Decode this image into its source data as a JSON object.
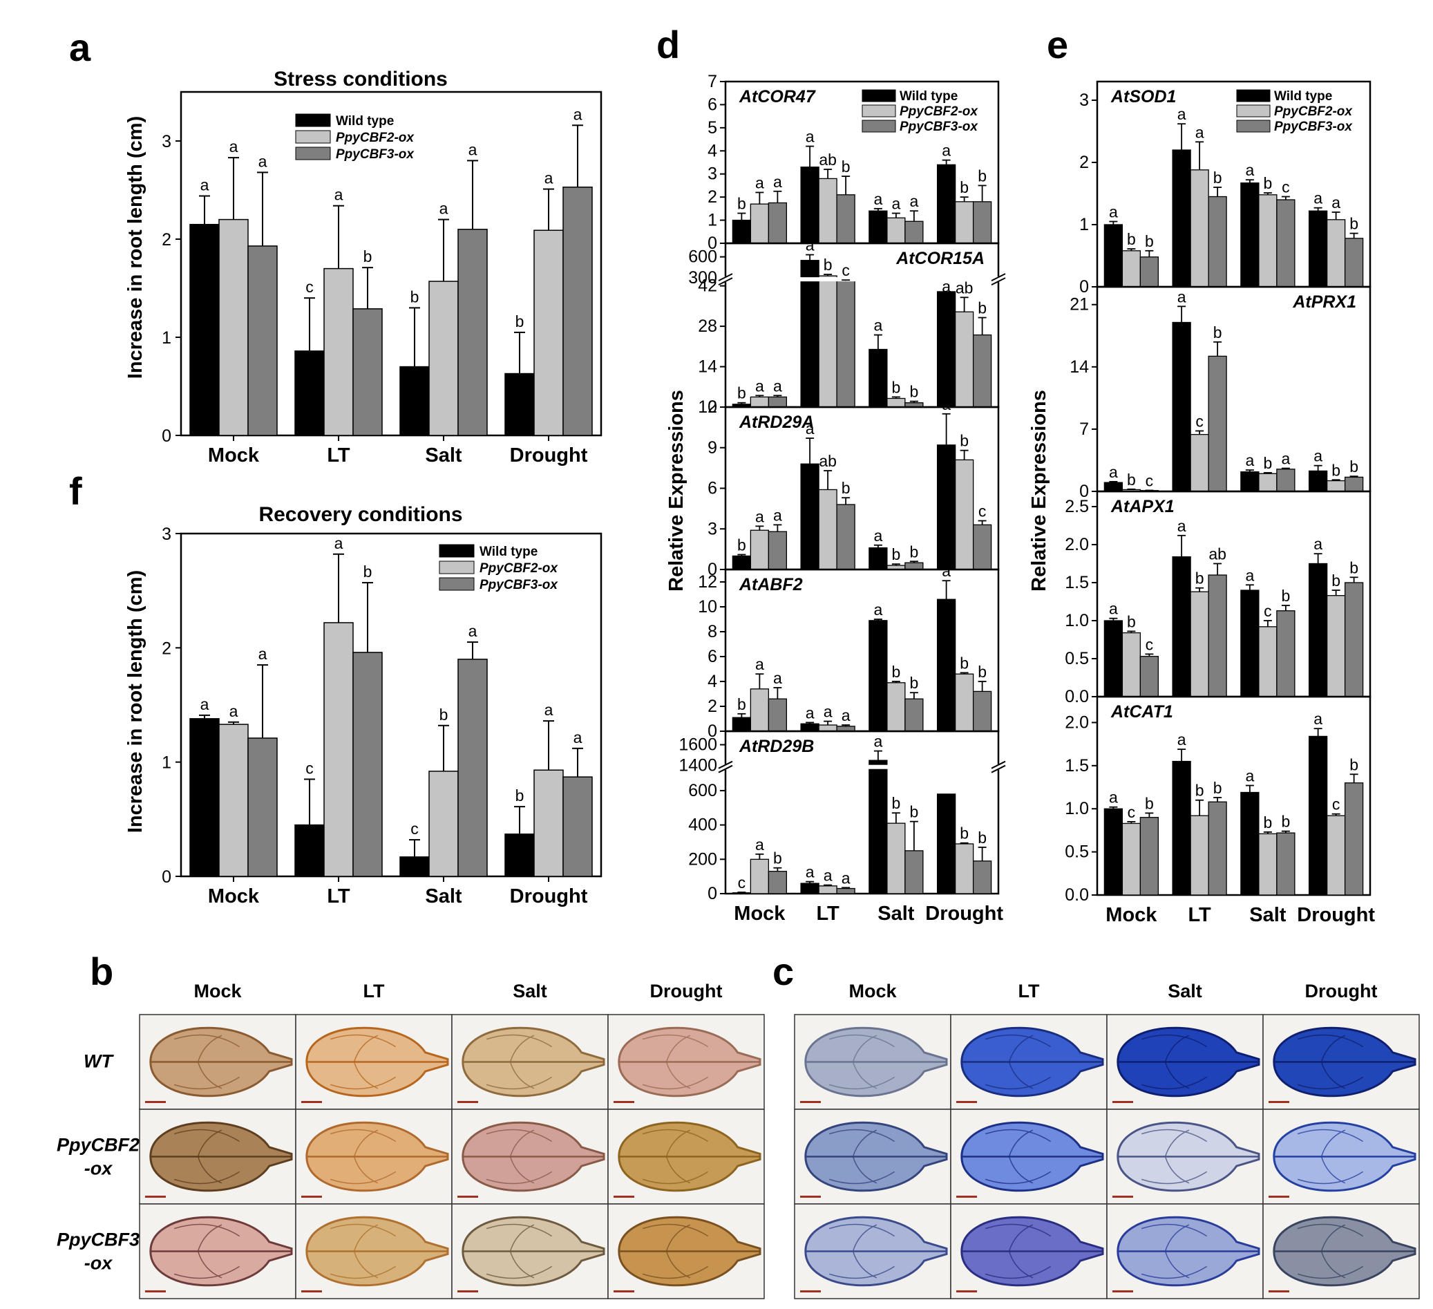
{
  "panel_labels": {
    "a": "a",
    "b": "b",
    "c": "c",
    "d": "d",
    "e": "e",
    "f": "f"
  },
  "colors": {
    "wild_type": "#000000",
    "cbf2": "#c4c4c4",
    "cbf3": "#7f7f7f"
  },
  "chart_data": [
    {
      "id": "a",
      "type": "bar",
      "title": "Stress conditions",
      "ylabel": "Increase in root length (cm)",
      "xlabel": "",
      "ylim": [
        0,
        3.5
      ],
      "yticks": [
        0,
        1,
        2,
        3
      ],
      "categories": [
        "Mock",
        "LT",
        "Salt",
        "Drought"
      ],
      "legend_position": "top-center",
      "series": [
        {
          "name": "Wild type",
          "values": [
            2.15,
            0.86,
            0.7,
            0.63
          ],
          "errors": [
            0.29,
            0.54,
            0.6,
            0.42
          ],
          "letters": [
            "a",
            "c",
            "b",
            "b"
          ]
        },
        {
          "name": "PpyCBF2-ox",
          "values": [
            2.2,
            1.7,
            1.57,
            2.09
          ],
          "errors": [
            0.63,
            0.64,
            0.63,
            0.42
          ],
          "letters": [
            "a",
            "a",
            "a",
            "a"
          ]
        },
        {
          "name": "PpyCBF3-ox",
          "values": [
            1.93,
            1.29,
            2.1,
            2.53
          ],
          "errors": [
            0.75,
            0.42,
            0.7,
            0.63
          ],
          "letters": [
            "a",
            "b",
            "a",
            "a"
          ]
        }
      ]
    },
    {
      "id": "f",
      "type": "bar",
      "title": "Recovery conditions",
      "ylabel": "Increase in root length (cm)",
      "xlabel": "",
      "ylim": [
        0,
        3
      ],
      "yticks": [
        0,
        1,
        2,
        3
      ],
      "categories": [
        "Mock",
        "LT",
        "Salt",
        "Drought"
      ],
      "legend_position": "top-right",
      "series": [
        {
          "name": "Wild type",
          "values": [
            1.38,
            0.45,
            0.17,
            0.37
          ],
          "errors": [
            0.03,
            0.4,
            0.15,
            0.24
          ],
          "letters": [
            "a",
            "c",
            "c",
            "b"
          ]
        },
        {
          "name": "PpyCBF2-ox",
          "values": [
            1.33,
            2.22,
            0.92,
            0.93
          ],
          "errors": [
            0.02,
            0.6,
            0.4,
            0.43
          ],
          "letters": [
            "a",
            "a",
            "b",
            "a"
          ]
        },
        {
          "name": "PpyCBF3-ox",
          "values": [
            1.21,
            1.96,
            1.9,
            0.87
          ],
          "errors": [
            0.64,
            0.61,
            0.15,
            0.25
          ],
          "letters": [
            "a",
            "b",
            "a",
            "a"
          ]
        }
      ]
    },
    {
      "id": "d",
      "type": "bar",
      "ylabel": "Relative Expressions",
      "categories": [
        "Mock",
        "LT",
        "Salt",
        "Drought"
      ],
      "legend": [
        "Wild type",
        "PpyCBF2-ox",
        "PpyCBF3-ox"
      ],
      "panels": [
        {
          "gene": "AtCOR47",
          "ylim": [
            0,
            7
          ],
          "yticks": [
            0,
            1,
            2,
            3,
            4,
            5,
            6,
            7
          ],
          "series": [
            [
              1.0,
              3.3,
              1.4,
              3.4
            ],
            [
              1.7,
              2.8,
              1.1,
              1.8
            ],
            [
              1.75,
              2.1,
              0.95,
              1.8
            ]
          ],
          "errors": [
            [
              0.3,
              0.9,
              0.1,
              0.2
            ],
            [
              0.5,
              0.4,
              0.2,
              0.2
            ],
            [
              0.5,
              0.8,
              0.45,
              0.7
            ]
          ],
          "letters": [
            [
              "b",
              "a",
              "a",
              "a"
            ],
            [
              "a",
              "ab",
              "a",
              "b"
            ],
            [
              "a",
              "b",
              "a",
              "b"
            ]
          ]
        },
        {
          "gene": "AtCOR15A",
          "broken_axis": true,
          "upper_range": [
            300,
            600
          ],
          "upper_ticks": [
            300,
            600
          ],
          "ylim": [
            0,
            42
          ],
          "yticks": [
            0,
            14,
            28,
            42
          ],
          "series": [
            [
              1,
              550,
              20,
              40
            ],
            [
              3.5,
              330,
              3,
              33
            ],
            [
              3.5,
              260,
              1.5,
              25
            ]
          ],
          "errors": [
            [
              0.5,
              80,
              5,
              3
            ],
            [
              0.5,
              20,
              0.5,
              5
            ],
            [
              0.5,
              10,
              0.5,
              6
            ]
          ],
          "letters": [
            [
              "b",
              "a",
              "a",
              "a"
            ],
            [
              "a",
              "b",
              "b",
              "ab"
            ],
            [
              "a",
              "c",
              "b",
              "b"
            ]
          ]
        },
        {
          "gene": "AtRD29A",
          "ylim": [
            0,
            12
          ],
          "yticks": [
            0,
            3,
            6,
            9,
            12
          ],
          "series": [
            [
              1.0,
              7.8,
              1.6,
              9.2
            ],
            [
              2.9,
              5.9,
              0.3,
              8.1
            ],
            [
              2.8,
              4.8,
              0.5,
              3.3
            ]
          ],
          "errors": [
            [
              0.1,
              1.9,
              0.2,
              2.3
            ],
            [
              0.3,
              1.4,
              0.1,
              0.7
            ],
            [
              0.5,
              0.5,
              0.1,
              0.3
            ]
          ],
          "letters": [
            [
              "b",
              "a",
              "a",
              "a"
            ],
            [
              "a",
              "ab",
              "b",
              "b"
            ],
            [
              "a",
              "b",
              "b",
              "c"
            ]
          ]
        },
        {
          "gene": "AtABF2",
          "ylim": [
            0,
            13
          ],
          "yticks": [
            0,
            2,
            4,
            6,
            8,
            10,
            12
          ],
          "series": [
            [
              1.1,
              0.6,
              8.9,
              10.6
            ],
            [
              3.4,
              0.5,
              3.9,
              4.6
            ],
            [
              2.6,
              0.4,
              2.6,
              3.2
            ]
          ],
          "errors": [
            [
              0.3,
              0.1,
              0.1,
              1.5
            ],
            [
              1.2,
              0.3,
              0.1,
              0.1
            ],
            [
              0.9,
              0.1,
              0.5,
              0.8
            ]
          ],
          "letters": [
            [
              "b",
              "a",
              "a",
              "a"
            ],
            [
              "a",
              "a",
              "b",
              "b"
            ],
            [
              "a",
              "a",
              "b",
              "b"
            ]
          ]
        },
        {
          "gene": "AtRD29B",
          "broken_axis": true,
          "upper_range": [
            1400,
            1600
          ],
          "upper_ticks": [
            1400,
            1600
          ],
          "ylim": [
            0,
            700
          ],
          "yticks": [
            0,
            200,
            400,
            600
          ],
          "series": [
            [
              5,
              60,
              1450,
              580
            ],
            [
              200,
              45,
              410,
              290
            ],
            [
              130,
              30,
              250,
              190
            ]
          ],
          "errors": [
            [
              3,
              10,
              90,
              160
            ],
            [
              30,
              5,
              60,
              5
            ],
            [
              20,
              5,
              170,
              80
            ]
          ],
          "letters": [
            [
              "c",
              "a",
              "a",
              "a"
            ],
            [
              "a",
              "a",
              "b",
              "b"
            ],
            [
              "b",
              "a",
              "b",
              "b"
            ]
          ]
        }
      ]
    },
    {
      "id": "e",
      "type": "bar",
      "ylabel": "Relative Expressions",
      "categories": [
        "Mock",
        "LT",
        "Salt",
        "Drought"
      ],
      "legend": [
        "Wild type",
        "PpyCBF2-ox",
        "PpyCBF3-ox"
      ],
      "panels": [
        {
          "gene": "AtSOD1",
          "ylim": [
            0,
            3.3
          ],
          "yticks": [
            0,
            1,
            2,
            3
          ],
          "series": [
            [
              1.0,
              2.2,
              1.67,
              1.22
            ],
            [
              0.58,
              1.88,
              1.48,
              1.08
            ],
            [
              0.48,
              1.45,
              1.4,
              0.78
            ]
          ],
          "errors": [
            [
              0.05,
              0.42,
              0.05,
              0.05
            ],
            [
              0.03,
              0.45,
              0.03,
              0.12
            ],
            [
              0.1,
              0.15,
              0.05,
              0.08
            ]
          ],
          "letters": [
            [
              "a",
              "a",
              "a",
              "a"
            ],
            [
              "b",
              "a",
              "b",
              "a"
            ],
            [
              "b",
              "b",
              "c",
              "b"
            ]
          ]
        },
        {
          "gene": "AtPRX1",
          "ylim": [
            0,
            23
          ],
          "yticks": [
            0,
            7,
            14,
            21
          ],
          "series": [
            [
              1.0,
              19.0,
              2.2,
              2.3
            ],
            [
              0.2,
              6.4,
              2.0,
              1.2
            ],
            [
              0.1,
              15.2,
              2.5,
              1.6
            ]
          ],
          "errors": [
            [
              0.1,
              1.8,
              0.2,
              0.6
            ],
            [
              0.05,
              0.4,
              0.1,
              0.1
            ],
            [
              0.02,
              1.6,
              0.1,
              0.1
            ]
          ],
          "letters": [
            [
              "a",
              "a",
              "a",
              "a"
            ],
            [
              "b",
              "c",
              "b",
              "b"
            ],
            [
              "c",
              "b",
              "a",
              "b"
            ]
          ]
        },
        {
          "gene": "AtAPX1",
          "ylim": [
            0,
            2.7
          ],
          "yticks": [
            0.0,
            0.5,
            1.0,
            1.5,
            2.0,
            2.5
          ],
          "series": [
            [
              1.0,
              1.84,
              1.4,
              1.75
            ],
            [
              0.84,
              1.38,
              0.92,
              1.33
            ],
            [
              0.53,
              1.6,
              1.13,
              1.5
            ]
          ],
          "errors": [
            [
              0.03,
              0.28,
              0.07,
              0.13
            ],
            [
              0.02,
              0.05,
              0.08,
              0.07
            ],
            [
              0.03,
              0.15,
              0.07,
              0.07
            ]
          ],
          "letters": [
            [
              "a",
              "a",
              "a",
              "a"
            ],
            [
              "b",
              "b",
              "c",
              "b"
            ],
            [
              "c",
              "ab",
              "b",
              "b"
            ]
          ]
        },
        {
          "gene": "AtCAT1",
          "ylim": [
            0,
            2.3
          ],
          "yticks": [
            0.0,
            0.5,
            1.0,
            1.5,
            2.0
          ],
          "series": [
            [
              1.0,
              1.55,
              1.19,
              1.84
            ],
            [
              0.83,
              0.92,
              0.71,
              0.92
            ],
            [
              0.9,
              1.08,
              0.72,
              1.3
            ]
          ],
          "errors": [
            [
              0.02,
              0.14,
              0.08,
              0.09
            ],
            [
              0.02,
              0.18,
              0.02,
              0.02
            ],
            [
              0.05,
              0.05,
              0.02,
              0.1
            ]
          ],
          "letters": [
            [
              "a",
              "a",
              "a",
              "a"
            ],
            [
              "c",
              "b",
              "b",
              "c"
            ],
            [
              "b",
              "b",
              "b",
              "b"
            ]
          ]
        }
      ]
    }
  ],
  "images": {
    "b": {
      "columns": [
        "Mock",
        "LT",
        "Salt",
        "Drought"
      ],
      "rows": [
        [
          "WT"
        ],
        [
          "PpyCBF2",
          "-ox"
        ],
        [
          "PpyCBF3",
          "-ox"
        ]
      ],
      "stain": "brown"
    },
    "c": {
      "columns": [
        "Mock",
        "LT",
        "Salt",
        "Drought"
      ],
      "stain": "blue"
    }
  }
}
